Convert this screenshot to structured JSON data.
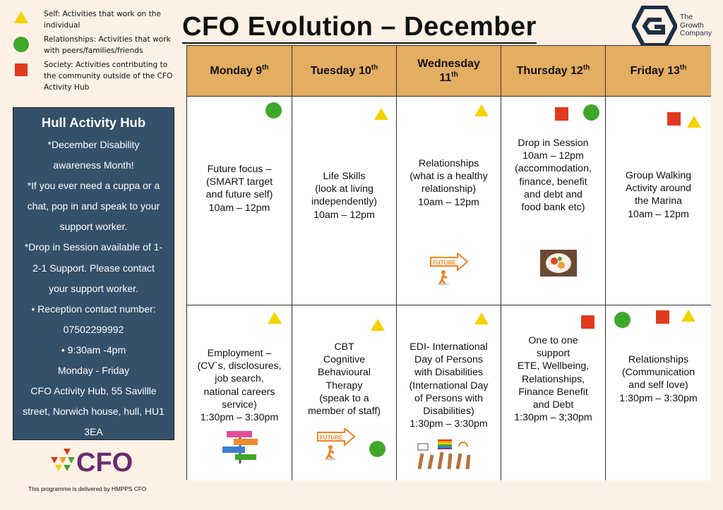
{
  "legend": [
    {
      "shape": "yellow-triangle",
      "text": "Self: Activities that work on the individual"
    },
    {
      "shape": "green-circle",
      "text": "Relationships: Activities that work with peers/families/friends"
    },
    {
      "shape": "red-square",
      "text": "Society: Activities contributing to the community outside of the CFO Activity Hub"
    }
  ],
  "title": "CFO Evolution – December",
  "brand": {
    "line1": "The",
    "line2": "Growth",
    "line3": "Company"
  },
  "info": {
    "heading": "Hull Activity Hub",
    "line1": "*December Disability",
    "line2": "awareness Month!",
    "line3": "*If you ever need a cuppa or a",
    "line4": "chat, pop in and speak to your",
    "line5": "support worker.",
    "line6": "*Drop in Session available of 1-",
    "line7": "2-1 Support. Please contact",
    "line8": "your support worker.",
    "line9": "•   Reception contact number:",
    "line10": "07502299992",
    "line11": "•   9:30am -4pm",
    "line12": "Monday - Friday",
    "line13": "CFO Activity Hub, 55 Savillle",
    "line14": "street, Norwich house, hull, HU1",
    "line15": "3EA"
  },
  "cfo_logo_text": "CFO",
  "footer": "This programme is delivered by HMPPS CFO",
  "days": [
    {
      "name": "Monday 9",
      "suffix": "th"
    },
    {
      "name": "Tuesday 10",
      "suffix": "th"
    },
    {
      "name": "Wednesday 11",
      "suffix": "th"
    },
    {
      "name": "Thursday 12",
      "suffix": "th"
    },
    {
      "name": "Friday 13",
      "suffix": "th"
    }
  ],
  "morning": [
    "Future focus –\n(SMART target\nand future self)\n10am – 12pm",
    "Life Skills\n(look at living\nindependently)\n10am – 12pm",
    "Relationships\n(what is a healthy\nrelationship)\n10am – 12pm",
    "Drop in Session\n10am – 12pm\n(accommodation,\nfinance, benefit\nand debt and\nfood bank etc)",
    "Group Walking\nActivity around\nthe Marina\n10am – 12pm"
  ],
  "afternoon": [
    "Employment –\n(CV`s, disclosures,\njob search,\nnational careers\nservice)\n1:30pm – 3:30pm",
    "CBT\nCognitive\nBehavioural\nTherapy\n(speak to a\nmember of staff)",
    "EDI- International\nDay of Persons\nwith Disabilities\n(International Day\nof Persons with\nDisabilities)\n1:30pm – 3:30pm",
    "One to one\nsupport\nETE, Wellbeing,\nRelationships,\nFinance Benefit\nand Debt\n1:30pm – 3;30pm",
    "Relationships\n(Communication\nand self love)\n1:30pm – 3:30pm"
  ],
  "sign_future": "FUTURE",
  "colors": {
    "header": "#e3ad62",
    "panel": "#34506a",
    "triangle": "#f5d200",
    "circle": "#3ea82b",
    "square": "#e03a1e"
  }
}
